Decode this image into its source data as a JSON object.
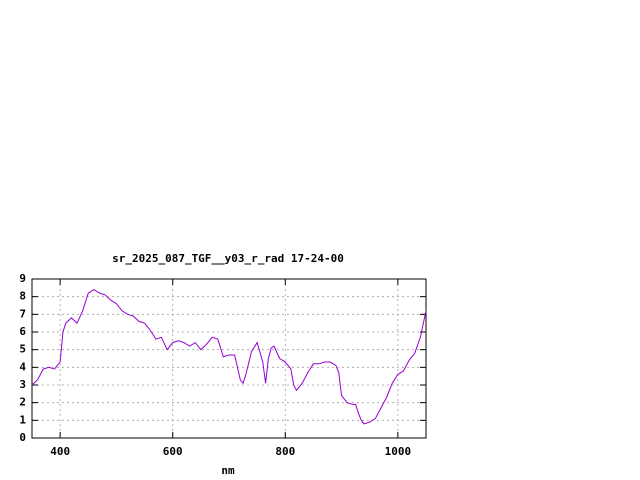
{
  "chart_data": {
    "type": "line",
    "title": "sr_2025_087_TGF__y03_r_rad 17-24-00",
    "x_label": "nm",
    "x": [
      350,
      360,
      370,
      380,
      390,
      400,
      405,
      410,
      420,
      430,
      440,
      450,
      460,
      470,
      480,
      490,
      500,
      510,
      520,
      530,
      540,
      550,
      560,
      570,
      580,
      590,
      600,
      610,
      620,
      630,
      640,
      650,
      660,
      670,
      680,
      690,
      700,
      710,
      720,
      725,
      730,
      740,
      750,
      760,
      765,
      770,
      775,
      780,
      790,
      800,
      810,
      815,
      820,
      830,
      840,
      850,
      860,
      870,
      880,
      890,
      895,
      900,
      910,
      920,
      925,
      930,
      935,
      940,
      950,
      960,
      970,
      980,
      990,
      1000,
      1010,
      1020,
      1030,
      1040,
      1050
    ],
    "series": [
      {
        "color": "#9400d3",
        "values": [
          3.0,
          3.3,
          3.9,
          4.0,
          3.9,
          4.3,
          6.0,
          6.5,
          6.8,
          6.5,
          7.2,
          8.2,
          8.4,
          8.2,
          8.1,
          7.8,
          7.6,
          7.2,
          7.0,
          6.9,
          6.6,
          6.5,
          6.1,
          5.6,
          5.7,
          5.0,
          5.4,
          5.5,
          5.4,
          5.2,
          5.4,
          5.0,
          5.3,
          5.7,
          5.6,
          4.6,
          4.7,
          4.7,
          3.3,
          3.1,
          3.6,
          4.9,
          5.4,
          4.3,
          3.1,
          4.5,
          5.1,
          5.2,
          4.5,
          4.3,
          3.9,
          3.0,
          2.7,
          3.1,
          3.7,
          4.2,
          4.2,
          4.3,
          4.3,
          4.1,
          3.7,
          2.4,
          2.0,
          1.9,
          1.9,
          1.4,
          1.0,
          0.8,
          0.9,
          1.1,
          1.7,
          2.3,
          3.1,
          3.6,
          3.8,
          4.4,
          4.8,
          5.7,
          7.2
        ]
      }
    ],
    "xlim": [
      350,
      1050
    ],
    "xticks": [
      400,
      600,
      800,
      1000
    ],
    "ylim": [
      0,
      9
    ],
    "yticks": [
      0,
      1,
      2,
      3,
      4,
      5,
      6,
      7,
      8,
      9
    ],
    "grid": true
  }
}
